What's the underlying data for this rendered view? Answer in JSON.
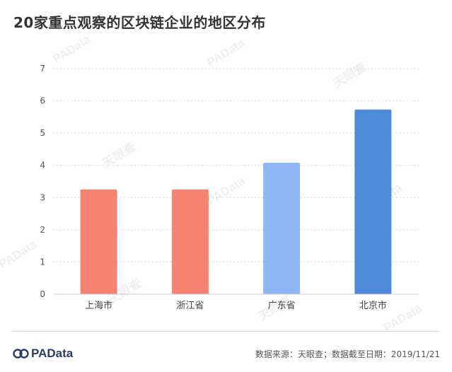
{
  "title": "20家重点观察的区块链企业的地区分布",
  "chart_data": {
    "type": "bar",
    "categories": [
      "上海市",
      "浙江省",
      "广东省",
      "北京市"
    ],
    "values": [
      3.25,
      3.25,
      4.08,
      5.73
    ],
    "colors": [
      "#f78372",
      "#f78372",
      "#8cb7f4",
      "#4f8ad8"
    ],
    "ylim": [
      0,
      7
    ],
    "yticks": [
      "0",
      "1",
      "2",
      "3",
      "4",
      "5",
      "6",
      "7"
    ],
    "grid": true,
    "grid_style": "dotted"
  },
  "watermarks": {
    "brand": "PAData",
    "partner": "天眼查"
  },
  "footer": {
    "logo_text": "PAData",
    "source": "数据来源：天眼查；数据截至日期：2019/11/21"
  }
}
